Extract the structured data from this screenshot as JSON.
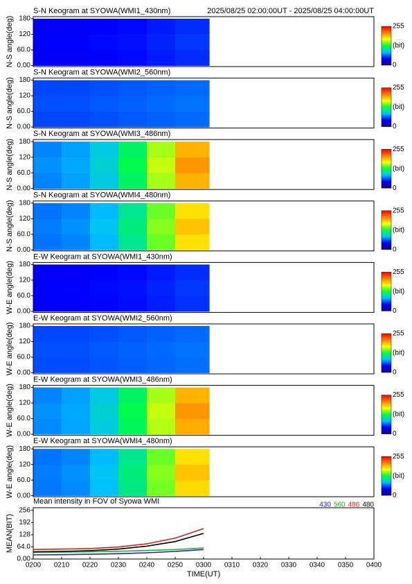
{
  "chart_data": [
    {
      "type": "heatmap",
      "title": "S-N Keogram at SYOWA(WMI1_430nm)",
      "subtitle": "2025/08/25 02:00:00UT - 2025/08/25 04:00:00UT",
      "ylabel": "N-S angle(deg)",
      "x_bins": [
        0,
        10,
        20,
        30,
        40,
        50,
        62
      ],
      "y_bins": [
        0,
        60,
        120,
        180
      ],
      "values": [
        [
          40,
          40,
          42,
          44,
          48,
          52
        ],
        [
          42,
          42,
          44,
          46,
          50,
          55
        ],
        [
          40,
          40,
          42,
          44,
          48,
          52
        ]
      ],
      "xlim": [
        0,
        120
      ],
      "ylim": [
        -4,
        188
      ],
      "yticks": [
        {
          "value": 0,
          "label": "0.00"
        },
        {
          "value": 60,
          "label": "60.0"
        },
        120,
        180
      ],
      "zlim": [
        0,
        255
      ],
      "colorscale": [
        "#20007a",
        "#0000ff",
        "#00c0ff",
        "#00ff40",
        "#ffff00",
        "#ff8000",
        "#ff0000"
      ],
      "colorbar_ticks": [
        0,
        255
      ],
      "colorbar_label": "(bit)"
    },
    {
      "type": "heatmap",
      "title": "S-N Keogram at SYOWA(WMI2_560nm)",
      "ylabel": "N-S angle(deg)",
      "x_bins": [
        0,
        10,
        20,
        30,
        40,
        50,
        62
      ],
      "y_bins": [
        0,
        60,
        120,
        180
      ],
      "values": [
        [
          58,
          58,
          60,
          62,
          64,
          66
        ],
        [
          60,
          60,
          62,
          64,
          66,
          68
        ],
        [
          58,
          58,
          60,
          62,
          64,
          66
        ]
      ],
      "xlim": [
        0,
        120
      ],
      "ylim": [
        -4,
        188
      ],
      "yticks": [
        {
          "value": 0,
          "label": "0.00"
        },
        {
          "value": 60,
          "label": "60.0"
        },
        120,
        180
      ],
      "zlim": [
        0,
        255
      ],
      "colorscale": [
        "#20007a",
        "#0000ff",
        "#00c0ff",
        "#00ff40",
        "#ffff00",
        "#ff8000",
        "#ff0000"
      ],
      "colorbar_ticks": [
        0,
        255
      ],
      "colorbar_label": "(bit)"
    },
    {
      "type": "heatmap",
      "title": "S-N Keogram at SYOWA(WMI3_486nm)",
      "ylabel": "N-S angle(deg)",
      "x_bins": [
        0,
        10,
        20,
        30,
        40,
        50,
        62
      ],
      "y_bins": [
        0,
        60,
        120,
        180
      ],
      "values": [
        [
          72,
          78,
          92,
          120,
          155,
          195
        ],
        [
          75,
          80,
          95,
          125,
          160,
          205
        ],
        [
          72,
          78,
          92,
          120,
          155,
          195
        ]
      ],
      "xlim": [
        0,
        120
      ],
      "ylim": [
        -4,
        188
      ],
      "yticks": [
        {
          "value": 0,
          "label": "0.00"
        },
        {
          "value": 60,
          "label": "60.0"
        },
        120,
        180
      ],
      "zlim": [
        0,
        255
      ],
      "colorscale": [
        "#20007a",
        "#0000ff",
        "#00c0ff",
        "#00ff40",
        "#ffff00",
        "#ff8000",
        "#ff0000"
      ],
      "colorbar_ticks": [
        0,
        255
      ],
      "colorbar_label": "(bit)"
    },
    {
      "type": "heatmap",
      "title": "S-N Keogram at SYOWA(WMI4_480nm)",
      "ylabel": "N-S angle(deg)",
      "x_bins": [
        0,
        10,
        20,
        30,
        40,
        50,
        62
      ],
      "y_bins": [
        0,
        60,
        120,
        180
      ],
      "values": [
        [
          68,
          72,
          84,
          110,
          145,
          180
        ],
        [
          70,
          75,
          88,
          115,
          150,
          190
        ],
        [
          68,
          72,
          84,
          110,
          145,
          180
        ]
      ],
      "xlim": [
        0,
        120
      ],
      "ylim": [
        -4,
        188
      ],
      "yticks": [
        {
          "value": 0,
          "label": "0.00"
        },
        {
          "value": 60,
          "label": "60.0"
        },
        120,
        180
      ],
      "zlim": [
        0,
        255
      ],
      "colorscale": [
        "#20007a",
        "#0000ff",
        "#00c0ff",
        "#00ff40",
        "#ffff00",
        "#ff8000",
        "#ff0000"
      ],
      "colorbar_ticks": [
        0,
        255
      ],
      "colorbar_label": "(bit)"
    },
    {
      "type": "heatmap",
      "title": "E-W Keogram at SYOWA(WMI1_430nm)",
      "ylabel": "W-E angle(deg)",
      "x_bins": [
        0,
        10,
        20,
        30,
        40,
        50,
        62
      ],
      "y_bins": [
        0,
        60,
        120,
        180
      ],
      "values": [
        [
          41,
          41,
          43,
          45,
          49,
          53
        ],
        [
          42,
          42,
          44,
          46,
          50,
          55
        ],
        [
          40,
          40,
          42,
          44,
          48,
          52
        ]
      ],
      "xlim": [
        0,
        120
      ],
      "ylim": [
        -4,
        188
      ],
      "yticks": [
        {
          "value": 0,
          "label": "0.00"
        },
        {
          "value": 60,
          "label": "60.0"
        },
        120,
        180
      ],
      "zlim": [
        0,
        255
      ],
      "colorscale": [
        "#20007a",
        "#0000ff",
        "#00c0ff",
        "#00ff40",
        "#ffff00",
        "#ff8000",
        "#ff0000"
      ],
      "colorbar_ticks": [
        0,
        255
      ],
      "colorbar_label": "(bit)"
    },
    {
      "type": "heatmap",
      "title": "E-W Keogram at SYOWA(WMI2_560nm)",
      "ylabel": "W-E angle(deg)",
      "x_bins": [
        0,
        10,
        20,
        30,
        40,
        50,
        62
      ],
      "y_bins": [
        0,
        60,
        120,
        180
      ],
      "values": [
        [
          59,
          59,
          61,
          63,
          65,
          67
        ],
        [
          60,
          60,
          62,
          64,
          66,
          68
        ],
        [
          58,
          58,
          60,
          62,
          64,
          66
        ]
      ],
      "xlim": [
        0,
        120
      ],
      "ylim": [
        -4,
        188
      ],
      "yticks": [
        {
          "value": 0,
          "label": "0.00"
        },
        {
          "value": 60,
          "label": "60.0"
        },
        120,
        180
      ],
      "zlim": [
        0,
        255
      ],
      "colorscale": [
        "#20007a",
        "#0000ff",
        "#00c0ff",
        "#00ff40",
        "#ffff00",
        "#ff8000",
        "#ff0000"
      ],
      "colorbar_ticks": [
        0,
        255
      ],
      "colorbar_label": "(bit)"
    },
    {
      "type": "heatmap",
      "title": "E-W Keogram at SYOWA(WMI3_486nm)",
      "ylabel": "W-E angle(deg)",
      "x_bins": [
        0,
        10,
        20,
        30,
        40,
        50,
        62
      ],
      "y_bins": [
        0,
        60,
        120,
        180
      ],
      "values": [
        [
          73,
          79,
          93,
          122,
          157,
          198
        ],
        [
          75,
          80,
          95,
          125,
          160,
          205
        ],
        [
          72,
          78,
          92,
          120,
          155,
          195
        ]
      ],
      "xlim": [
        0,
        120
      ],
      "ylim": [
        -4,
        188
      ],
      "yticks": [
        {
          "value": 0,
          "label": "0.00"
        },
        {
          "value": 60,
          "label": "60.0"
        },
        120,
        180
      ],
      "zlim": [
        0,
        255
      ],
      "colorscale": [
        "#20007a",
        "#0000ff",
        "#00c0ff",
        "#00ff40",
        "#ffff00",
        "#ff8000",
        "#ff0000"
      ],
      "colorbar_ticks": [
        0,
        255
      ],
      "colorbar_label": "(bit)"
    },
    {
      "type": "heatmap",
      "title": "E-W Keogram at SYOWA(WMI4_480nm)",
      "ylabel": "W-E angle(deg)",
      "x_bins": [
        0,
        10,
        20,
        30,
        40,
        50,
        62
      ],
      "y_bins": [
        0,
        60,
        120,
        180
      ],
      "values": [
        [
          69,
          73,
          86,
          112,
          147,
          182
        ],
        [
          70,
          75,
          88,
          115,
          150,
          190
        ],
        [
          68,
          72,
          84,
          110,
          145,
          180
        ]
      ],
      "xlim": [
        0,
        120
      ],
      "ylim": [
        -4,
        188
      ],
      "yticks": [
        {
          "value": 0,
          "label": "0.00"
        },
        {
          "value": 60,
          "label": "60.0"
        },
        120,
        180
      ],
      "zlim": [
        0,
        255
      ],
      "colorscale": [
        "#20007a",
        "#0000ff",
        "#00c0ff",
        "#00ff40",
        "#ffff00",
        "#ff8000",
        "#ff0000"
      ],
      "colorbar_ticks": [
        0,
        255
      ],
      "colorbar_label": "(bit)"
    },
    {
      "type": "line",
      "title": "Mean intensity in FOV of Syowa WMI",
      "xlabel": "TIME(UT)",
      "ylabel": "MEAN(BIT)",
      "x": [
        0,
        10,
        20,
        30,
        40,
        50,
        60
      ],
      "series": [
        {
          "name": "430",
          "color": "#2020c0",
          "values": [
            22,
            23,
            25,
            28,
            33,
            40,
            50
          ]
        },
        {
          "name": "560",
          "color": "#20b020",
          "values": [
            35,
            36,
            38,
            41,
            45,
            50,
            58
          ]
        },
        {
          "name": "486",
          "color": "#d02020",
          "values": [
            50,
            52,
            55,
            63,
            80,
            110,
            160
          ]
        },
        {
          "name": "480",
          "color": "#000000",
          "values": [
            38,
            40,
            44,
            52,
            68,
            92,
            135
          ]
        }
      ],
      "xlim": [
        0,
        120
      ],
      "ylim": [
        0,
        270
      ],
      "xticks": [
        {
          "value": 0,
          "label": "0200"
        },
        {
          "value": 10,
          "label": "0210"
        },
        {
          "value": 20,
          "label": "0220"
        },
        {
          "value": 30,
          "label": "0230"
        },
        {
          "value": 40,
          "label": "0240"
        },
        {
          "value": 50,
          "label": "0250"
        },
        {
          "value": 60,
          "label": "0300"
        },
        {
          "value": 70,
          "label": "0310"
        },
        {
          "value": 80,
          "label": "0320"
        },
        {
          "value": 90,
          "label": "0330"
        },
        {
          "value": 100,
          "label": "0340"
        },
        {
          "value": 110,
          "label": "0350"
        },
        {
          "value": 120,
          "label": "0400"
        }
      ],
      "yticks": [
        {
          "value": 0,
          "label": "0.00"
        },
        {
          "value": 64,
          "label": "64.0"
        },
        128,
        192,
        256
      ]
    }
  ]
}
